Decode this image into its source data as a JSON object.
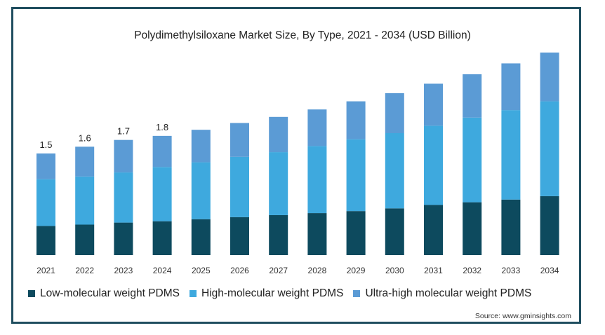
{
  "chart_data": {
    "type": "bar",
    "stacked": true,
    "title": "Polydimethylsiloxane Market Size, By Type, 2021 - 2034 (USD Billion)",
    "categories": [
      "2021",
      "2022",
      "2023",
      "2024",
      "2025",
      "2026",
      "2027",
      "2028",
      "2029",
      "2030",
      "2031",
      "2032",
      "2033",
      "2034"
    ],
    "series": [
      {
        "name": "Low-molecular weight PDMS",
        "color": "#0d4a5e",
        "values": [
          0.43,
          0.45,
          0.48,
          0.5,
          0.53,
          0.56,
          0.59,
          0.62,
          0.65,
          0.69,
          0.74,
          0.78,
          0.82,
          0.87
        ]
      },
      {
        "name": "High-molecular weight PDMS",
        "color": "#3ea9de",
        "values": [
          0.69,
          0.71,
          0.74,
          0.8,
          0.84,
          0.89,
          0.93,
          0.99,
          1.06,
          1.11,
          1.17,
          1.25,
          1.32,
          1.4
        ]
      },
      {
        "name": "Ultra-high molecular weight PDMS",
        "color": "#5b9bd5",
        "values": [
          0.38,
          0.44,
          0.48,
          0.46,
          0.48,
          0.5,
          0.52,
          0.54,
          0.56,
          0.59,
          0.62,
          0.64,
          0.69,
          0.72
        ]
      }
    ],
    "data_labels": [
      "1.5",
      "1.6",
      "1.7",
      "1.8"
    ],
    "ylim": [
      0,
      3.0
    ],
    "grid": false,
    "legend": "bottom-left",
    "source": "Source: www.gminsights.com"
  }
}
